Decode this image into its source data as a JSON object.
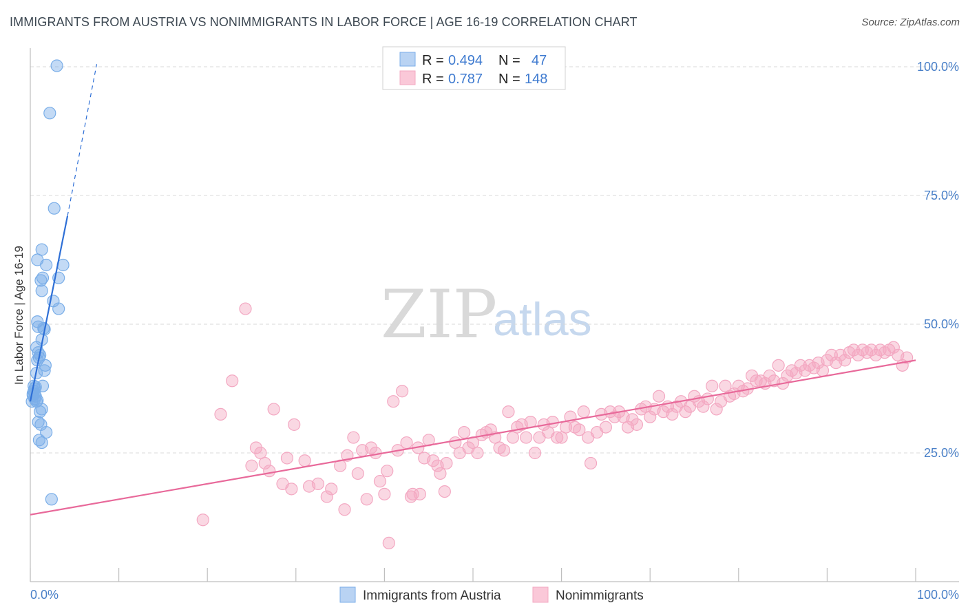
{
  "header": {
    "title": "IMMIGRANTS FROM AUSTRIA VS NONIMMIGRANTS IN LABOR FORCE | AGE 16-19 CORRELATION CHART",
    "source": "Source: ZipAtlas.com"
  },
  "watermark": {
    "zip": "ZIP",
    "atlas": "atlas"
  },
  "colors": {
    "blue": "#7aaee8",
    "blue_line": "#2e6fd6",
    "pink": "#f3a8c2",
    "pink_line": "#e8699a",
    "tick_text": "#4a80c8",
    "grid": "#d8d8d8"
  },
  "legend": {
    "rows": [
      {
        "r_label": "R =",
        "r_value": "0.494",
        "n_label": "N =",
        "n_value": "47"
      },
      {
        "r_label": "R =",
        "r_value": "0.787",
        "n_label": "N =",
        "n_value": "148"
      }
    ]
  },
  "chart_data": {
    "type": "scatter",
    "title": "IMMIGRANTS FROM AUSTRIA VS NONIMMIGRANTS IN LABOR FORCE | AGE 16-19 CORRELATION CHART",
    "xlabel": "",
    "ylabel": "In Labor Force | Age 16-19",
    "xlim": [
      0,
      100
    ],
    "ylim": [
      0,
      105
    ],
    "x_tick_labels": [
      "0.0%",
      "100.0%"
    ],
    "y_ticks": [
      25,
      50,
      75,
      100
    ],
    "y_tick_labels": [
      "25.0%",
      "50.0%",
      "75.0%",
      "100.0%"
    ],
    "grid": true,
    "legend_position": "top-center",
    "series": [
      {
        "name": "Immigrants from Austria",
        "R": 0.494,
        "N": 47,
        "points": [
          [
            3.0,
            100.2
          ],
          [
            2.2,
            91.0
          ],
          [
            2.7,
            72.5
          ],
          [
            1.3,
            64.5
          ],
          [
            1.8,
            61.5
          ],
          [
            3.7,
            61.5
          ],
          [
            0.8,
            62.5
          ],
          [
            3.2,
            59.0
          ],
          [
            1.2,
            58.5
          ],
          [
            1.4,
            59.0
          ],
          [
            1.3,
            56.5
          ],
          [
            2.6,
            54.5
          ],
          [
            3.2,
            53.0
          ],
          [
            0.8,
            50.5
          ],
          [
            0.9,
            49.5
          ],
          [
            1.6,
            49.0
          ],
          [
            1.5,
            49.2
          ],
          [
            1.3,
            47.0
          ],
          [
            0.7,
            45.5
          ],
          [
            0.9,
            44.5
          ],
          [
            1.0,
            43.5
          ],
          [
            0.8,
            43.0
          ],
          [
            1.7,
            42.0
          ],
          [
            1.6,
            41.0
          ],
          [
            0.7,
            40.5
          ],
          [
            1.4,
            38.0
          ],
          [
            0.5,
            37.5
          ],
          [
            0.4,
            37.0
          ],
          [
            0.3,
            36.5
          ],
          [
            0.6,
            36.0
          ],
          [
            0.5,
            35.5
          ],
          [
            0.2,
            35.0
          ],
          [
            0.7,
            35.0
          ],
          [
            0.5,
            36.5
          ],
          [
            1.3,
            33.5
          ],
          [
            1.1,
            33.0
          ],
          [
            0.9,
            31.0
          ],
          [
            1.2,
            30.5
          ],
          [
            1.8,
            29.0
          ],
          [
            1.0,
            27.5
          ],
          [
            1.3,
            27.0
          ],
          [
            2.4,
            16.0
          ],
          [
            0.4,
            38.0
          ],
          [
            0.6,
            37.8
          ],
          [
            0.3,
            36.2
          ],
          [
            0.8,
            35.2
          ],
          [
            1.1,
            44.0
          ]
        ],
        "trend": {
          "x1": 0,
          "y1": 35.0,
          "x2": 4.2,
          "y2": 71.0
        },
        "trend_dashed": {
          "x1": 4.2,
          "y1": 71.0,
          "x2": 7.5,
          "y2": 100.5
        }
      },
      {
        "name": "Nonimmigrants",
        "R": 0.787,
        "N": 148,
        "points": [
          [
            19.5,
            12.0
          ],
          [
            21.5,
            32.5
          ],
          [
            22.8,
            39.0
          ],
          [
            24.3,
            53.0
          ],
          [
            25.0,
            22.5
          ],
          [
            25.5,
            26.0
          ],
          [
            26.0,
            25.0
          ],
          [
            26.5,
            23.0
          ],
          [
            27.0,
            21.5
          ],
          [
            27.5,
            33.5
          ],
          [
            28.5,
            19.0
          ],
          [
            29.0,
            24.0
          ],
          [
            29.5,
            18.0
          ],
          [
            29.8,
            30.5
          ],
          [
            31.0,
            23.5
          ],
          [
            31.5,
            18.5
          ],
          [
            32.5,
            19.0
          ],
          [
            33.5,
            16.5
          ],
          [
            34.0,
            18.0
          ],
          [
            35.0,
            22.5
          ],
          [
            35.5,
            14.0
          ],
          [
            35.8,
            24.5
          ],
          [
            36.5,
            28.0
          ],
          [
            37.0,
            21.0
          ],
          [
            37.5,
            25.5
          ],
          [
            38.0,
            16.0
          ],
          [
            38.5,
            26.0
          ],
          [
            39.0,
            25.0
          ],
          [
            39.5,
            19.5
          ],
          [
            40.0,
            17.0
          ],
          [
            40.3,
            21.5
          ],
          [
            40.5,
            7.5
          ],
          [
            41.0,
            35.0
          ],
          [
            41.5,
            25.5
          ],
          [
            42.0,
            37.0
          ],
          [
            42.5,
            27.0
          ],
          [
            43.0,
            16.5
          ],
          [
            43.2,
            17.0
          ],
          [
            44.0,
            17.0
          ],
          [
            44.5,
            24.0
          ],
          [
            45.0,
            27.5
          ],
          [
            45.5,
            23.5
          ],
          [
            46.0,
            22.5
          ],
          [
            46.3,
            21.0
          ],
          [
            46.8,
            17.5
          ],
          [
            47.0,
            23.0
          ],
          [
            48.0,
            27.0
          ],
          [
            48.5,
            25.0
          ],
          [
            49.0,
            29.0
          ],
          [
            49.5,
            26.0
          ],
          [
            50.0,
            27.0
          ],
          [
            50.5,
            25.0
          ],
          [
            51.0,
            28.5
          ],
          [
            51.5,
            29.0
          ],
          [
            52.0,
            29.5
          ],
          [
            52.5,
            28.0
          ],
          [
            53.0,
            26.0
          ],
          [
            53.5,
            25.5
          ],
          [
            54.0,
            33.0
          ],
          [
            54.5,
            28.0
          ],
          [
            55.0,
            30.0
          ],
          [
            55.5,
            30.5
          ],
          [
            56.0,
            28.0
          ],
          [
            56.5,
            31.0
          ],
          [
            57.0,
            25.0
          ],
          [
            57.5,
            28.0
          ],
          [
            58.0,
            30.5
          ],
          [
            58.5,
            29.0
          ],
          [
            59.0,
            31.0
          ],
          [
            59.5,
            28.0
          ],
          [
            60.0,
            28.0
          ],
          [
            60.5,
            30.0
          ],
          [
            61.0,
            32.0
          ],
          [
            61.5,
            30.0
          ],
          [
            62.0,
            29.5
          ],
          [
            62.5,
            33.0
          ],
          [
            63.0,
            28.0
          ],
          [
            63.3,
            23.0
          ],
          [
            64.0,
            29.0
          ],
          [
            64.5,
            32.5
          ],
          [
            65.0,
            30.0
          ],
          [
            65.5,
            33.0
          ],
          [
            66.0,
            32.0
          ],
          [
            66.5,
            33.0
          ],
          [
            67.0,
            32.0
          ],
          [
            67.5,
            30.0
          ],
          [
            68.0,
            31.5
          ],
          [
            68.5,
            30.5
          ],
          [
            69.0,
            33.5
          ],
          [
            69.5,
            34.0
          ],
          [
            70.0,
            32.0
          ],
          [
            70.5,
            33.5
          ],
          [
            71.0,
            36.0
          ],
          [
            71.5,
            33.0
          ],
          [
            72.0,
            34.0
          ],
          [
            72.5,
            32.5
          ],
          [
            73.0,
            34.0
          ],
          [
            73.5,
            35.0
          ],
          [
            74.0,
            33.0
          ],
          [
            74.5,
            34.0
          ],
          [
            75.0,
            36.0
          ],
          [
            75.5,
            35.0
          ],
          [
            76.0,
            34.0
          ],
          [
            76.5,
            35.5
          ],
          [
            77.0,
            38.0
          ],
          [
            77.5,
            33.5
          ],
          [
            78.0,
            35.0
          ],
          [
            78.5,
            38.0
          ],
          [
            79.0,
            36.0
          ],
          [
            79.5,
            36.5
          ],
          [
            80.0,
            38.0
          ],
          [
            80.5,
            37.0
          ],
          [
            81.0,
            37.5
          ],
          [
            81.5,
            40.0
          ],
          [
            82.0,
            39.0
          ],
          [
            82.5,
            39.0
          ],
          [
            83.0,
            38.5
          ],
          [
            83.5,
            40.0
          ],
          [
            84.0,
            39.0
          ],
          [
            84.5,
            42.0
          ],
          [
            85.0,
            38.5
          ],
          [
            85.5,
            40.0
          ],
          [
            86.0,
            41.0
          ],
          [
            86.5,
            40.5
          ],
          [
            87.0,
            42.0
          ],
          [
            87.5,
            41.0
          ],
          [
            88.0,
            42.0
          ],
          [
            88.5,
            41.5
          ],
          [
            89.0,
            42.5
          ],
          [
            89.5,
            41.0
          ],
          [
            90.0,
            43.0
          ],
          [
            90.5,
            44.0
          ],
          [
            91.0,
            42.5
          ],
          [
            91.5,
            44.0
          ],
          [
            92.0,
            43.0
          ],
          [
            92.5,
            44.5
          ],
          [
            93.0,
            45.0
          ],
          [
            93.5,
            44.0
          ],
          [
            94.0,
            45.0
          ],
          [
            94.5,
            44.5
          ],
          [
            95.0,
            45.0
          ],
          [
            95.5,
            44.0
          ],
          [
            96.0,
            45.0
          ],
          [
            96.5,
            44.5
          ],
          [
            97.0,
            45.0
          ],
          [
            97.5,
            45.5
          ],
          [
            98.0,
            44.0
          ],
          [
            98.5,
            42.0
          ],
          [
            99.0,
            43.5
          ],
          [
            43.8,
            26.0
          ]
        ],
        "trend": {
          "x1": 0,
          "y1": 13.0,
          "x2": 100,
          "y2": 43.0
        }
      }
    ]
  }
}
